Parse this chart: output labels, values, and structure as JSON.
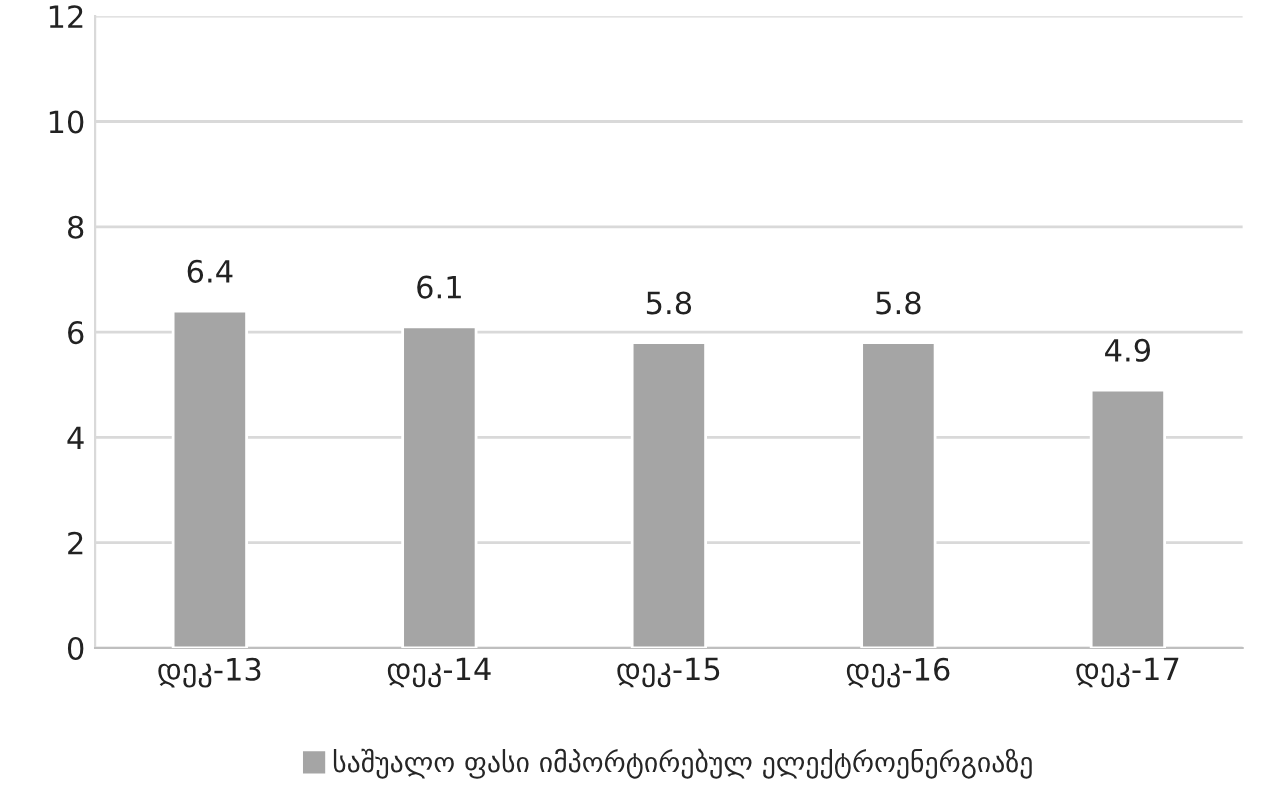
{
  "chart_data": {
    "type": "bar",
    "categories": [
      "დეკ-13",
      "დეკ-14",
      "დეკ-15",
      "დეკ-16",
      "დეკ-17"
    ],
    "series": [
      {
        "name": "საშუალო ფასი იმპორტირებულ ელექტროენერგიაზე",
        "color": "#a5a5a5",
        "values": [
          6.4,
          6.1,
          5.8,
          5.8,
          4.9
        ]
      }
    ],
    "ylim": [
      0,
      12
    ],
    "yticks": [
      0,
      2,
      4,
      6,
      8,
      10,
      12
    ],
    "grid": "y",
    "data_labels": true,
    "legend": "bottom"
  }
}
